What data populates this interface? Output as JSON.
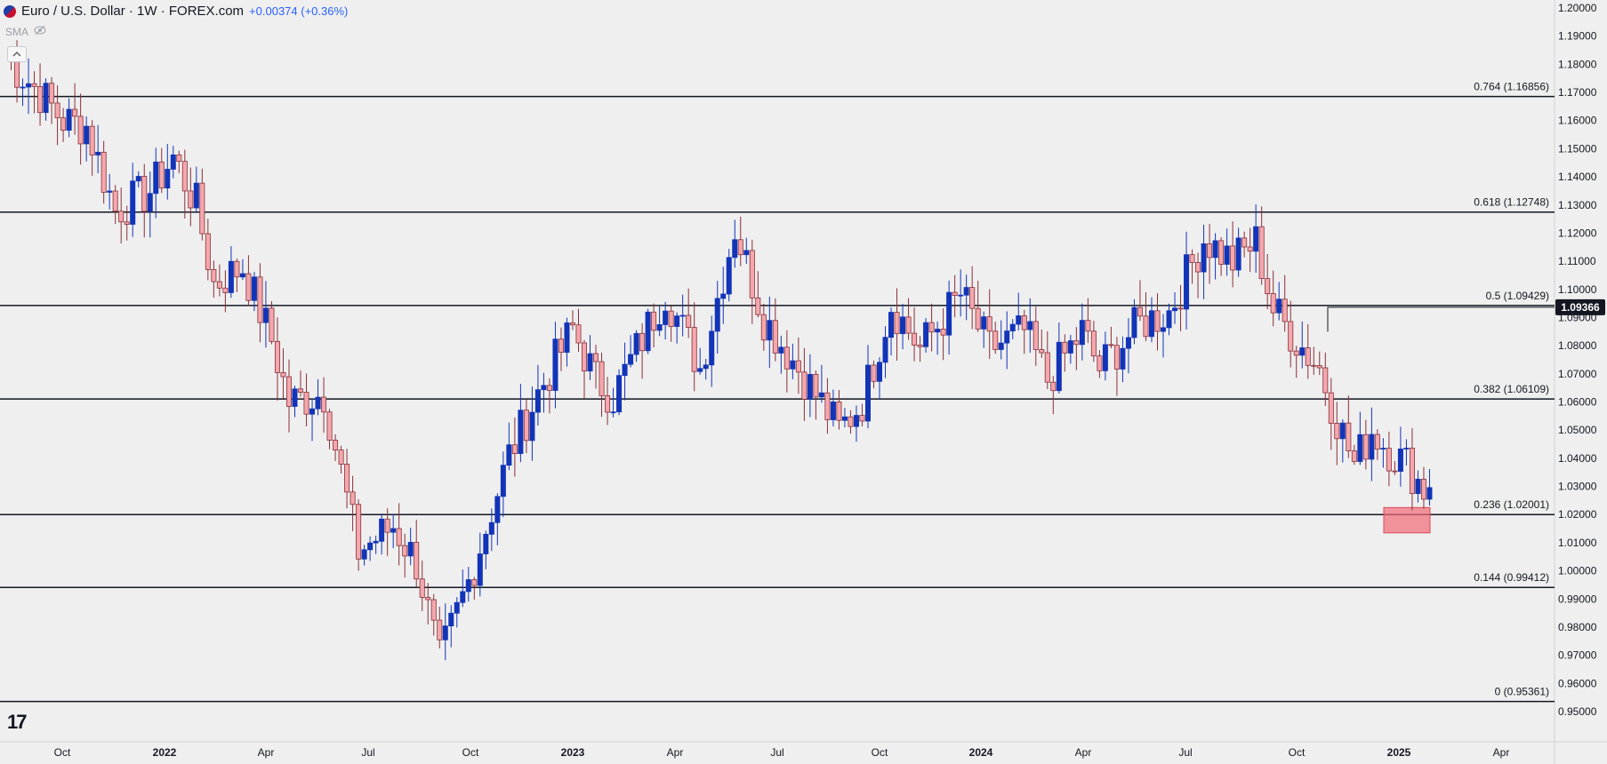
{
  "header": {
    "symbol": "Euro / U.S. Dollar · 1W · FOREX.com",
    "change": "+0.00374 (+0.36%)",
    "indicator": "SMA"
  },
  "colors": {
    "up": "#1234b8",
    "down": "#f4a8ae",
    "down_border": "#8a2f37",
    "fib_line": "#131722",
    "highlight": "#f26b78",
    "price_tag_bg": "#131722"
  },
  "icons": [
    "eye-slash-icon",
    "chevron-up-icon",
    "tradingview-logo-icon"
  ],
  "branding": {
    "logo_text": "17"
  },
  "chart_data": {
    "type": "candlestick",
    "y_range": [
      0.945,
      1.2
    ],
    "y_ticks": [
      "1.20000",
      "1.19000",
      "1.18000",
      "1.17000",
      "1.16000",
      "1.15000",
      "1.14000",
      "1.13000",
      "1.12000",
      "1.11000",
      "1.10000",
      "1.09000",
      "1.08000",
      "1.07000",
      "1.06000",
      "1.05000",
      "1.04000",
      "1.03000",
      "1.02000",
      "1.01000",
      "1.00000",
      "0.99000",
      "0.98000",
      "0.97000",
      "0.96000",
      "0.95000"
    ],
    "x_labels": [
      "Oct",
      "2022",
      "Apr",
      "Jul",
      "Oct",
      "2023",
      "Apr",
      "Jul",
      "Oct",
      "2024",
      "Apr",
      "Jul",
      "Oct",
      "2025",
      "Apr"
    ],
    "last_price": "1.09366",
    "fib_levels": [
      {
        "label": "0.764 (1.16856)",
        "price": 1.16856
      },
      {
        "label": "0.618 (1.12748)",
        "price": 1.12748
      },
      {
        "label": "0.5 (1.09429)",
        "price": 1.09429
      },
      {
        "label": "0.382 (1.06109)",
        "price": 1.06109
      },
      {
        "label": "0.236 (1.02001)",
        "price": 1.02001
      },
      {
        "label": "0.144 (0.99412)",
        "price": 0.99412
      },
      {
        "label": "0 (0.95361)",
        "price": 0.95361
      }
    ],
    "highlight_zone": {
      "price_top": 1.0225,
      "price_bottom": 1.0135
    },
    "anchor_points": [
      [
        0,
        1.182
      ],
      [
        5,
        1.172
      ],
      [
        10,
        1.16
      ],
      [
        14,
        1.158
      ],
      [
        19,
        1.128
      ],
      [
        25,
        1.135
      ],
      [
        29,
        1.147
      ],
      [
        33,
        1.13
      ],
      [
        36,
        1.102
      ],
      [
        41,
        1.108
      ],
      [
        46,
        1.082
      ],
      [
        49,
        1.06
      ],
      [
        55,
        1.063
      ],
      [
        61,
        1.007
      ],
      [
        67,
        1.016
      ],
      [
        71,
        1.003
      ],
      [
        75,
        0.968
      ],
      [
        80,
        0.996
      ],
      [
        87,
        1.041
      ],
      [
        92,
        1.063
      ],
      [
        98,
        1.086
      ],
      [
        102,
        1.068
      ],
      [
        105,
        1.062
      ],
      [
        114,
        1.099
      ],
      [
        120,
        1.072
      ],
      [
        126,
        1.122
      ],
      [
        131,
        1.09
      ],
      [
        137,
        1.072
      ],
      [
        144,
        1.05
      ],
      [
        148,
        1.06
      ],
      [
        153,
        1.095
      ],
      [
        158,
        1.079
      ],
      [
        165,
        1.098
      ],
      [
        170,
        1.079
      ],
      [
        176,
        1.085
      ],
      [
        180,
        1.068
      ],
      [
        186,
        1.085
      ],
      [
        189,
        1.072
      ],
      [
        196,
        1.088
      ],
      [
        201,
        1.092
      ],
      [
        207,
        1.118
      ],
      [
        212,
        1.11
      ],
      [
        216,
        1.117
      ],
      [
        219,
        1.093
      ],
      [
        223,
        1.082
      ],
      [
        227,
        1.072
      ],
      [
        230,
        1.054
      ],
      [
        233,
        1.038
      ],
      [
        236,
        1.05
      ],
      [
        239,
        1.043
      ],
      [
        242,
        1.038
      ],
      [
        245,
        1.029
      ],
      [
        246,
        1.028
      ]
    ]
  }
}
